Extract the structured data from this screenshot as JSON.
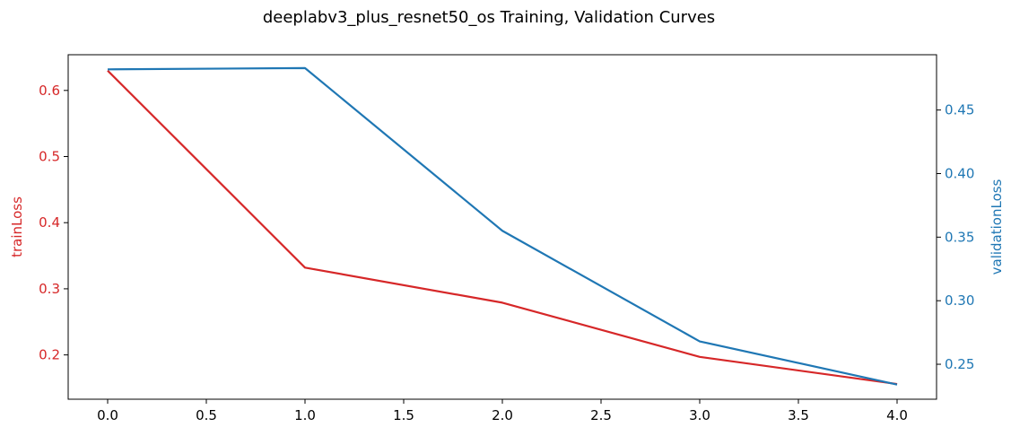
{
  "chart_data": {
    "type": "line",
    "title": "deeplabv3_plus_resnet50_os Training, Validation Curves",
    "xlabel": "",
    "y_left_label": "trainLoss",
    "y_right_label": "validationLoss",
    "x": [
      0,
      1,
      2,
      3,
      4
    ],
    "xlim": [
      -0.2,
      4.2
    ],
    "x_ticks": [
      0.0,
      0.5,
      1.0,
      1.5,
      2.0,
      2.5,
      3.0,
      3.5,
      4.0
    ],
    "x_tick_labels": [
      "0.0",
      "0.5",
      "1.0",
      "1.5",
      "2.0",
      "2.5",
      "3.0",
      "3.5",
      "4.0"
    ],
    "y_left_lim": [
      0.133,
      0.654
    ],
    "y_left_ticks": [
      0.2,
      0.3,
      0.4,
      0.5,
      0.6
    ],
    "y_left_tick_labels": [
      "0.2",
      "0.3",
      "0.4",
      "0.5",
      "0.6"
    ],
    "y_right_lim": [
      0.2225,
      0.4935
    ],
    "y_right_ticks": [
      0.25,
      0.3,
      0.35,
      0.4,
      0.45
    ],
    "y_right_tick_labels": [
      "0.25",
      "0.30",
      "0.35",
      "0.40",
      "0.45"
    ],
    "grid": false,
    "legend": "none",
    "series": [
      {
        "axis": "left",
        "color": "#d62728",
        "values": [
          0.63,
          0.332,
          0.279,
          0.197,
          0.156
        ]
      },
      {
        "axis": "right",
        "color": "#1f77b4",
        "values": [
          0.482,
          0.483,
          0.355,
          0.268,
          0.234
        ]
      }
    ],
    "left_axis_color": "#d62728",
    "right_axis_color": "#1f77b4"
  }
}
